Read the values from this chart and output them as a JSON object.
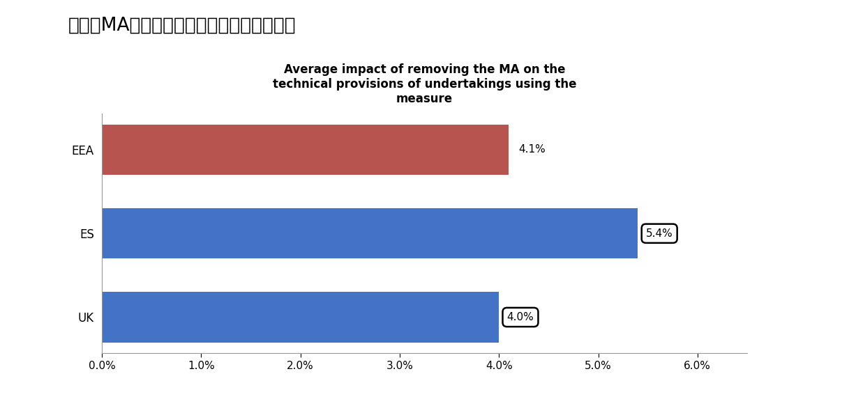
{
  "title_main": "図表　MA適用による技術的準備金への影響",
  "title_sub": "Average impact of removing the MA on the\ntechnical provisions of undertakings using the\nmeasure",
  "categories": [
    "UK",
    "ES",
    "EEA"
  ],
  "values": [
    4.0,
    5.4,
    4.1
  ],
  "labels": [
    "4.0%",
    "5.4%",
    "4.1%"
  ],
  "bar_colors": [
    "#4472C4",
    "#4472C4",
    "#B85450"
  ],
  "xlim_min": 0.0,
  "xlim_max": 0.065,
  "xticks": [
    0.0,
    0.01,
    0.02,
    0.03,
    0.04,
    0.05,
    0.06
  ],
  "xticklabels": [
    "0.0%",
    "1.0%",
    "2.0%",
    "3.0%",
    "4.0%",
    "5.0%",
    "6.0%"
  ],
  "bar_height": 0.6,
  "background_color": "#FFFFFF",
  "label_boxed": [
    true,
    true,
    false
  ],
  "label_fontsize": 11,
  "title_fontsize": 19,
  "subtitle_fontsize": 12
}
